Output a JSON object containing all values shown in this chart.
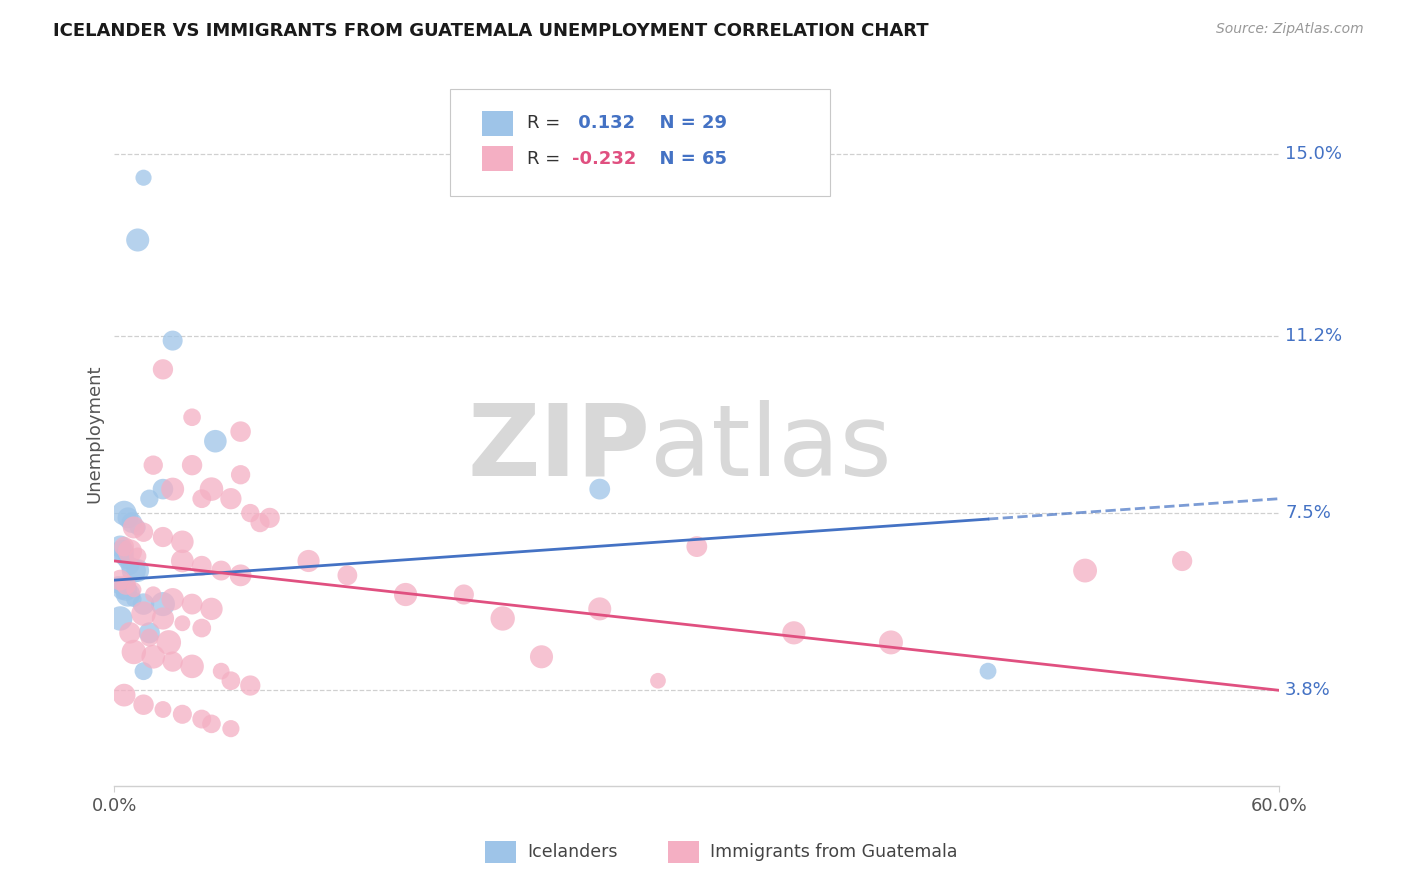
{
  "title": "ICELANDER VS IMMIGRANTS FROM GUATEMALA UNEMPLOYMENT CORRELATION CHART",
  "source": "Source: ZipAtlas.com",
  "ylabel": "Unemployment",
  "ytick_vals": [
    3.8,
    7.5,
    11.2,
    15.0
  ],
  "xmin": 0.0,
  "xmax": 60.0,
  "ymin": 1.8,
  "ymax": 16.5,
  "r_blue": "0.132",
  "n_blue": "29",
  "r_pink": "-0.232",
  "n_pink": "65",
  "blue_scatter_color": "#9ec4e8",
  "pink_scatter_color": "#f4afc3",
  "blue_line_color": "#4472c4",
  "pink_line_color": "#e05080",
  "grid_color": "#d0d0d0",
  "watermark_text": "ZIPatlas",
  "blue_x": [
    1.5,
    1.2,
    3.0,
    5.2,
    0.5,
    0.7,
    0.9,
    1.2,
    1.8,
    2.5,
    0.3,
    0.4,
    0.5,
    0.6,
    0.8,
    1.0,
    0.2,
    0.4,
    0.7,
    1.0,
    1.5,
    0.3,
    1.5,
    1.8,
    2.5,
    45.0,
    25.0,
    1.2,
    0.6
  ],
  "blue_y": [
    14.5,
    13.2,
    11.1,
    9.0,
    7.5,
    7.4,
    7.3,
    7.2,
    7.8,
    8.0,
    6.8,
    6.7,
    6.6,
    6.5,
    6.4,
    6.3,
    6.0,
    5.9,
    5.8,
    5.7,
    5.6,
    5.3,
    4.2,
    5.0,
    5.6,
    4.2,
    8.0,
    6.3,
    5.9
  ],
  "pink_x": [
    2.5,
    4.0,
    6.5,
    2.0,
    4.0,
    6.5,
    5.0,
    3.0,
    4.5,
    6.0,
    7.0,
    8.0,
    7.5,
    1.0,
    1.5,
    2.5,
    3.5,
    0.5,
    0.8,
    1.2,
    3.5,
    4.5,
    5.5,
    6.5,
    0.3,
    0.6,
    1.0,
    2.0,
    3.0,
    4.0,
    5.0,
    1.5,
    2.5,
    3.5,
    4.5,
    0.8,
    1.8,
    2.8,
    1.0,
    2.0,
    3.0,
    4.0,
    5.5,
    6.0,
    7.0,
    0.5,
    1.5,
    2.5,
    3.5,
    4.5,
    5.0,
    6.0,
    12.0,
    18.0,
    25.0,
    35.0,
    30.0,
    55.0,
    22.0,
    40.0,
    10.0,
    15.0,
    20.0,
    28.0,
    50.0
  ],
  "pink_y": [
    10.5,
    9.5,
    9.2,
    8.5,
    8.5,
    8.3,
    8.0,
    8.0,
    7.8,
    7.8,
    7.5,
    7.4,
    7.3,
    7.2,
    7.1,
    7.0,
    6.9,
    6.8,
    6.7,
    6.6,
    6.5,
    6.4,
    6.3,
    6.2,
    6.1,
    6.0,
    5.9,
    5.8,
    5.7,
    5.6,
    5.5,
    5.4,
    5.3,
    5.2,
    5.1,
    5.0,
    4.9,
    4.8,
    4.6,
    4.5,
    4.4,
    4.3,
    4.2,
    4.0,
    3.9,
    3.7,
    3.5,
    3.4,
    3.3,
    3.2,
    3.1,
    3.0,
    6.2,
    5.8,
    5.5,
    5.0,
    6.8,
    6.5,
    4.5,
    4.8,
    6.5,
    5.8,
    5.3,
    4.0,
    6.3
  ],
  "blue_trend_x0": 0.0,
  "blue_trend_x_solid_end": 45.0,
  "blue_trend_x1": 60.0,
  "blue_trend_y0": 6.1,
  "blue_trend_y1": 7.8,
  "pink_trend_x0": 0.0,
  "pink_trend_x1": 60.0,
  "pink_trend_y0": 6.5,
  "pink_trend_y1": 3.8
}
